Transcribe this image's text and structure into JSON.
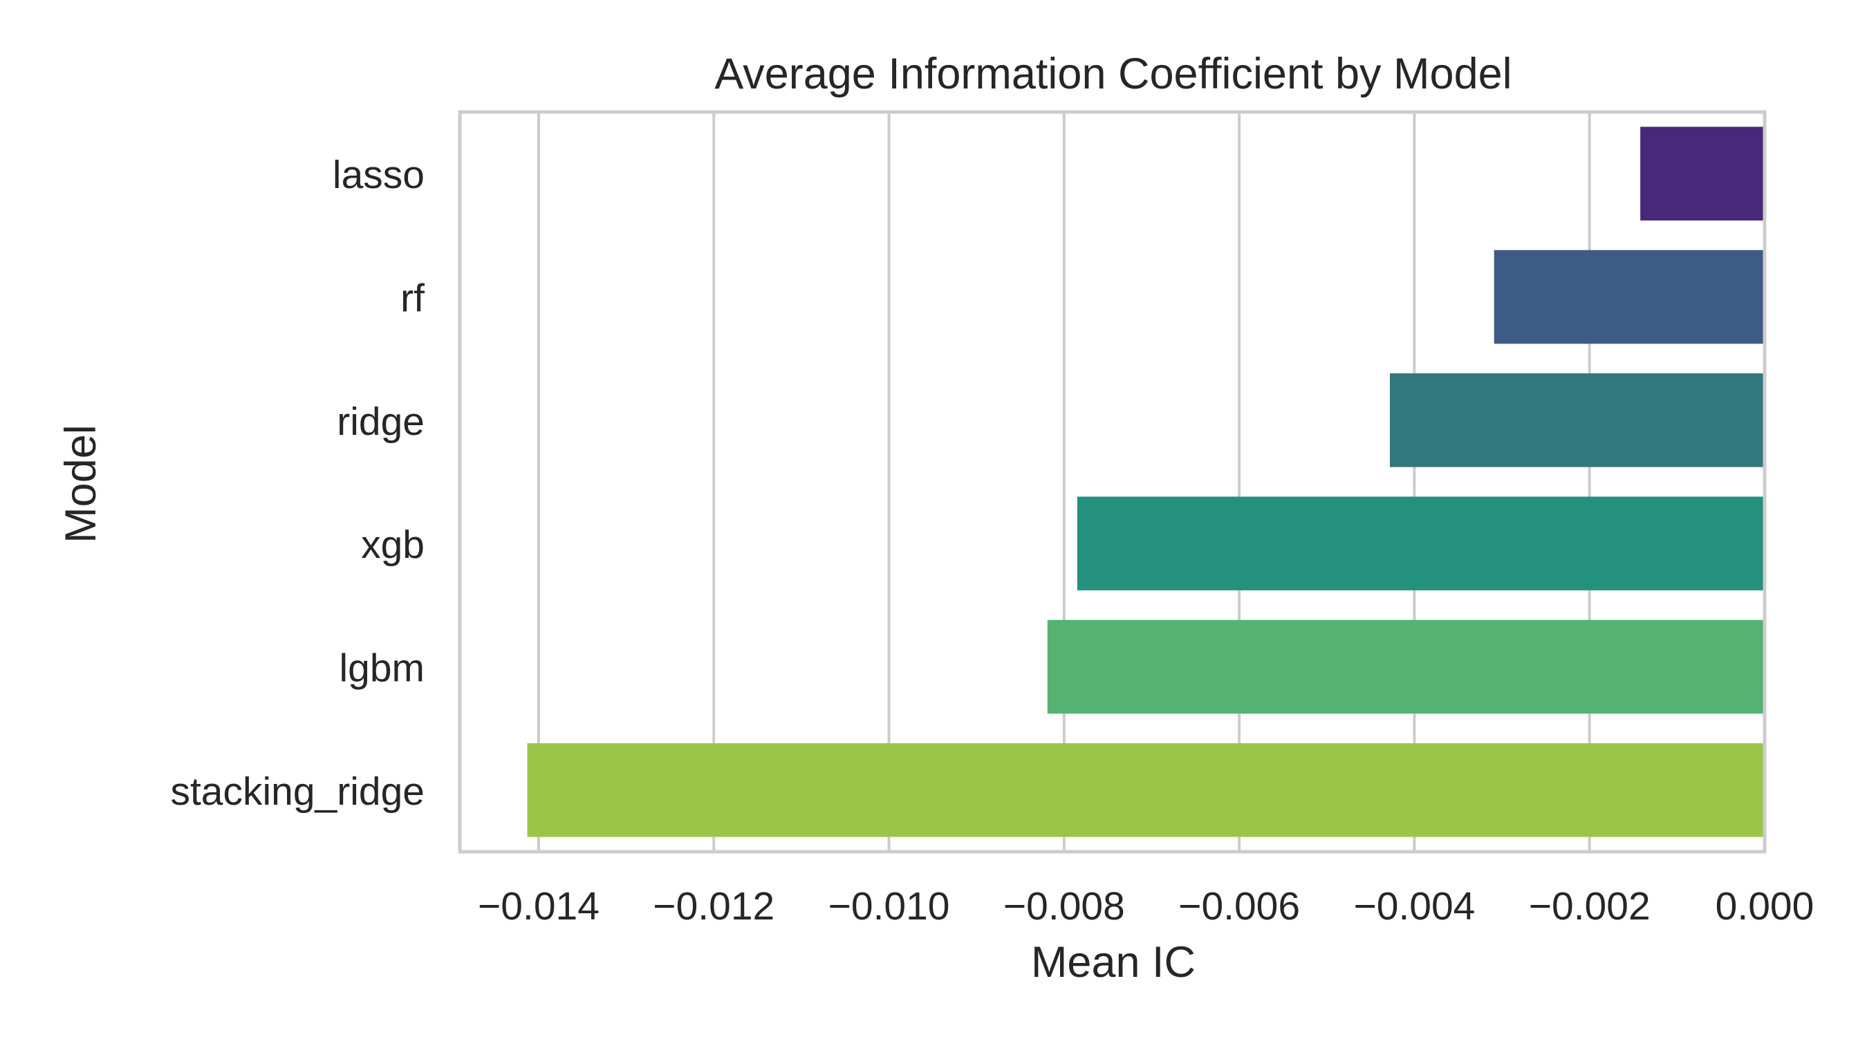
{
  "chart_data": {
    "type": "bar",
    "orientation": "horizontal",
    "title": "Average Information Coefficient by Model",
    "xlabel": "Mean IC",
    "ylabel": "Model",
    "categories": [
      "lasso",
      "rf",
      "ridge",
      "xgb",
      "lgbm",
      "stacking_ridge"
    ],
    "values": [
      -0.00142,
      -0.00309,
      -0.00428,
      -0.00785,
      -0.00819,
      -0.01413
    ],
    "colors": [
      "#482878",
      "#3e5a87",
      "#31787f",
      "#23917e",
      "#54b372",
      "#9ac647"
    ],
    "xlim": [
      -0.0149,
      0.0
    ],
    "xticks": [
      -0.014,
      -0.012,
      -0.01,
      -0.008,
      -0.006,
      -0.004,
      -0.002,
      0.0
    ],
    "xtick_labels": [
      "−0.014",
      "−0.012",
      "−0.010",
      "−0.008",
      "−0.006",
      "−0.004",
      "−0.002",
      "0.000"
    ],
    "grid": true,
    "legend": "none"
  }
}
